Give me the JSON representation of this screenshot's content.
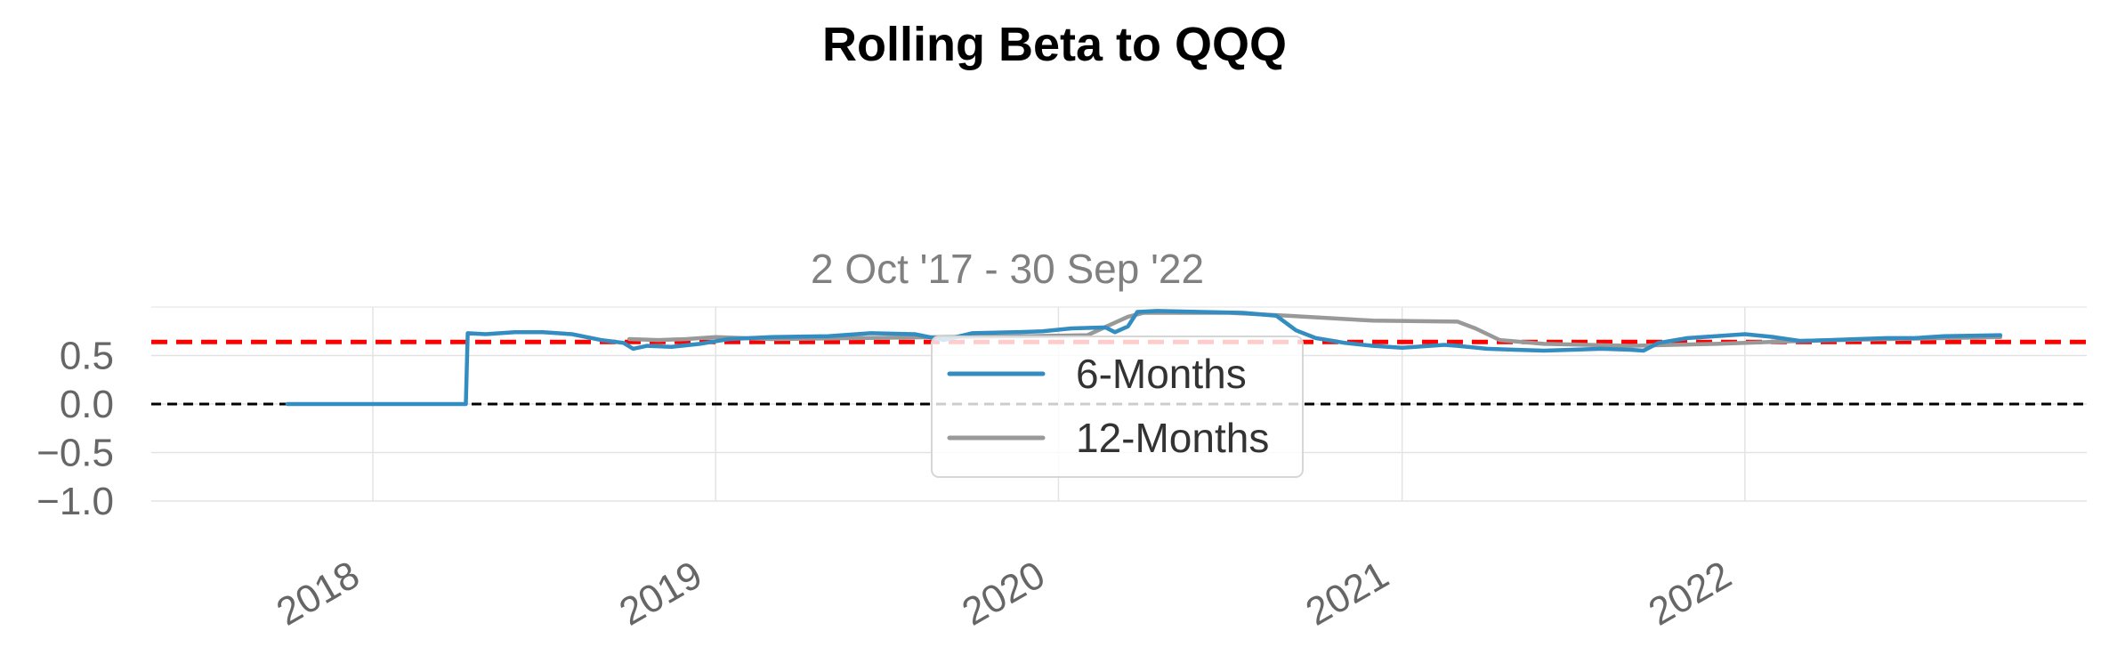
{
  "chart_data": {
    "type": "line",
    "title": "Rolling Beta to QQQ",
    "subtitle": "2 Oct '17 - 30 Sep '22",
    "xlabel": "",
    "ylabel": "",
    "x_range": [
      "2017-05-10",
      "2022-12-31"
    ],
    "ylim": [
      -1.0,
      1.0
    ],
    "y_ticks": [
      -1.0,
      -0.5,
      0.0,
      0.5
    ],
    "y_tick_labels": [
      "−1.0",
      "−0.5",
      "0.0",
      "0.5"
    ],
    "x_ticks": [
      "2018-01-01",
      "2019-01-01",
      "2020-01-01",
      "2021-01-01",
      "2022-01-01"
    ],
    "x_tick_labels": [
      "2018",
      "2019",
      "2020",
      "2021",
      "2022"
    ],
    "grid": true,
    "legend_position": "center",
    "reference_lines": [
      {
        "name": "mean beta",
        "value": 0.64,
        "color": "#ff0000",
        "style": "dashed"
      },
      {
        "name": "zero",
        "value": 0.0,
        "color": "#000000",
        "style": "dashed"
      }
    ],
    "series": [
      {
        "name": "6-Months",
        "color": "#348dc1",
        "points": [
          [
            "2017-10-02",
            0.0
          ],
          [
            "2018-04-10",
            0.0
          ],
          [
            "2018-04-12",
            0.73
          ],
          [
            "2018-05-01",
            0.72
          ],
          [
            "2018-06-01",
            0.74
          ],
          [
            "2018-07-01",
            0.74
          ],
          [
            "2018-08-01",
            0.72
          ],
          [
            "2018-09-01",
            0.66
          ],
          [
            "2018-09-25",
            0.63
          ],
          [
            "2018-10-05",
            0.57
          ],
          [
            "2018-10-20",
            0.6
          ],
          [
            "2018-11-15",
            0.59
          ],
          [
            "2018-12-15",
            0.62
          ],
          [
            "2019-01-15",
            0.67
          ],
          [
            "2019-03-01",
            0.69
          ],
          [
            "2019-05-01",
            0.7
          ],
          [
            "2019-06-15",
            0.73
          ],
          [
            "2019-08-01",
            0.72
          ],
          [
            "2019-09-01",
            0.66
          ],
          [
            "2019-10-01",
            0.73
          ],
          [
            "2019-11-15",
            0.74
          ],
          [
            "2019-12-15",
            0.75
          ],
          [
            "2020-01-15",
            0.78
          ],
          [
            "2020-02-20",
            0.79
          ],
          [
            "2020-03-01",
            0.74
          ],
          [
            "2020-03-15",
            0.8
          ],
          [
            "2020-03-25",
            0.95
          ],
          [
            "2020-04-15",
            0.96
          ],
          [
            "2020-06-01",
            0.95
          ],
          [
            "2020-07-15",
            0.94
          ],
          [
            "2020-08-20",
            0.91
          ],
          [
            "2020-09-10",
            0.76
          ],
          [
            "2020-10-01",
            0.68
          ],
          [
            "2020-11-01",
            0.63
          ],
          [
            "2020-12-01",
            0.6
          ],
          [
            "2021-01-01",
            0.58
          ],
          [
            "2021-02-15",
            0.61
          ],
          [
            "2021-03-01",
            0.6
          ],
          [
            "2021-04-01",
            0.57
          ],
          [
            "2021-05-01",
            0.56
          ],
          [
            "2021-06-01",
            0.55
          ],
          [
            "2021-07-01",
            0.56
          ],
          [
            "2021-08-01",
            0.57
          ],
          [
            "2021-09-01",
            0.56
          ],
          [
            "2021-09-15",
            0.55
          ],
          [
            "2021-10-01",
            0.63
          ],
          [
            "2021-11-01",
            0.68
          ],
          [
            "2021-12-01",
            0.7
          ],
          [
            "2022-01-01",
            0.72
          ],
          [
            "2022-02-01",
            0.69
          ],
          [
            "2022-03-01",
            0.65
          ],
          [
            "2022-04-01",
            0.66
          ],
          [
            "2022-05-01",
            0.67
          ],
          [
            "2022-06-01",
            0.68
          ],
          [
            "2022-07-01",
            0.68
          ],
          [
            "2022-08-01",
            0.7
          ],
          [
            "2022-09-30",
            0.71
          ]
        ]
      },
      {
        "name": "12-Months",
        "color": "#999999",
        "points": [
          [
            "2018-10-01",
            0.67
          ],
          [
            "2018-11-01",
            0.66
          ],
          [
            "2018-12-01",
            0.67
          ],
          [
            "2019-01-01",
            0.69
          ],
          [
            "2019-03-01",
            0.67
          ],
          [
            "2019-06-01",
            0.68
          ],
          [
            "2019-09-01",
            0.69
          ],
          [
            "2019-12-01",
            0.7
          ],
          [
            "2020-02-01",
            0.71
          ],
          [
            "2020-03-15",
            0.9
          ],
          [
            "2020-04-01",
            0.94
          ],
          [
            "2020-07-01",
            0.94
          ],
          [
            "2020-09-01",
            0.91
          ],
          [
            "2020-12-01",
            0.86
          ],
          [
            "2021-03-01",
            0.85
          ],
          [
            "2021-03-20",
            0.78
          ],
          [
            "2021-04-15",
            0.66
          ],
          [
            "2021-06-01",
            0.62
          ],
          [
            "2021-09-01",
            0.6
          ],
          [
            "2021-12-01",
            0.62
          ],
          [
            "2022-03-01",
            0.65
          ],
          [
            "2022-06-01",
            0.67
          ],
          [
            "2022-09-30",
            0.69
          ]
        ]
      }
    ]
  }
}
